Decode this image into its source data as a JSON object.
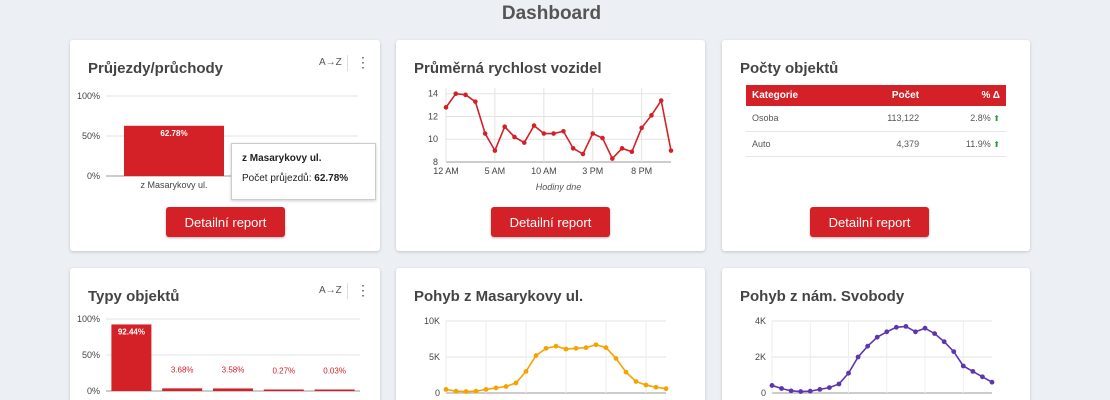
{
  "page": {
    "title": "Dashboard"
  },
  "colors": {
    "accent": "#d42027",
    "orange": "#f5a300",
    "purple": "#5e35b1",
    "up_arrow": "#2a9d3a"
  },
  "icons": {
    "sort": "sort-az-icon",
    "more": "more-vert-icon",
    "trend_up": "arrow-up-icon"
  },
  "tool_labels": {
    "sort": "A→Z",
    "more": "⋮"
  },
  "cards": {
    "passes": {
      "title": "Průjezdy/průchody",
      "button": "Detailní report",
      "tooltip": {
        "title": "z Masarykovy ul.",
        "label": "Počet průjezdů:",
        "value": "62.78%"
      }
    },
    "speed": {
      "title": "Průměrná rychlost vozidel",
      "button": "Detailní report"
    },
    "counts": {
      "title": "Počty objektů",
      "button": "Detailní report",
      "columns": [
        "Kategorie",
        "Počet",
        "% Δ"
      ],
      "rows": [
        {
          "category": "Osoba",
          "count": "113,122",
          "pct": "2.8%",
          "arrow": "⬆"
        },
        {
          "category": "Auto",
          "count": "4,379",
          "pct": "11.9%",
          "arrow": "⬆"
        }
      ]
    },
    "types": {
      "title": "Typy objektů"
    },
    "masarykova": {
      "title": "Pohyb z Masarykovy ul."
    },
    "svobody": {
      "title": "Pohyb z nám. Svobody"
    }
  },
  "chart_data": [
    {
      "id": "passes",
      "type": "bar",
      "categories": [
        "z Masarykovy ul."
      ],
      "values": [
        62.78
      ],
      "data_labels": [
        "62.78%"
      ],
      "ylim": [
        0,
        100
      ],
      "yticks": [
        "0%",
        "50%",
        "100%"
      ],
      "grid": true
    },
    {
      "id": "speed",
      "type": "line",
      "x": [
        0,
        1,
        2,
        3,
        4,
        5,
        6,
        7,
        8,
        9,
        10,
        11,
        12,
        13,
        14,
        15,
        16,
        17,
        18,
        19,
        20,
        21,
        22,
        23
      ],
      "values": [
        12.8,
        14.0,
        13.9,
        13.3,
        10.5,
        9.0,
        11.1,
        10.2,
        9.7,
        11.2,
        10.5,
        10.5,
        10.7,
        9.2,
        8.7,
        10.5,
        10.1,
        8.3,
        9.2,
        8.9,
        11.0,
        12.1,
        13.4,
        9.0
      ],
      "xlabel": "Hodiny dne",
      "xticks": [
        "12 AM",
        "5 AM",
        "10 AM",
        "3 PM",
        "8 PM"
      ],
      "xtick_positions": [
        0,
        5,
        10,
        15,
        20
      ],
      "yticks": [
        "8",
        "10",
        "12",
        "14"
      ],
      "ylim": [
        8,
        14.5
      ],
      "color": "#d42027",
      "grid": true
    },
    {
      "id": "types",
      "type": "bar",
      "values": [
        92.44,
        3.68,
        3.58,
        0.27,
        0.03
      ],
      "data_labels": [
        "92.44%",
        "3.68%",
        "3.58%",
        "0.27%",
        "0.03%"
      ],
      "ylim": [
        0,
        100
      ],
      "yticks": [
        "0%",
        "50%",
        "100%"
      ],
      "grid": true
    },
    {
      "id": "masarykova",
      "type": "line",
      "values": [
        500,
        250,
        200,
        250,
        500,
        700,
        900,
        1400,
        3000,
        5200,
        6200,
        6500,
        6100,
        6200,
        6300,
        6700,
        6300,
        4800,
        2900,
        1600,
        1100,
        800,
        600
      ],
      "yticks": [
        "0",
        "5K",
        "10K"
      ],
      "ylim": [
        0,
        10000
      ],
      "color": "#f5a300",
      "grid": true
    },
    {
      "id": "svobody",
      "type": "line",
      "values": [
        420,
        250,
        120,
        80,
        100,
        200,
        300,
        500,
        1100,
        2000,
        2600,
        3100,
        3400,
        3650,
        3700,
        3400,
        3600,
        3300,
        2850,
        2300,
        1500,
        1200,
        900,
        600
      ],
      "yticks": [
        "0",
        "2K",
        "4K"
      ],
      "ylim": [
        0,
        4000
      ],
      "color": "#5e35b1",
      "grid": true
    }
  ]
}
